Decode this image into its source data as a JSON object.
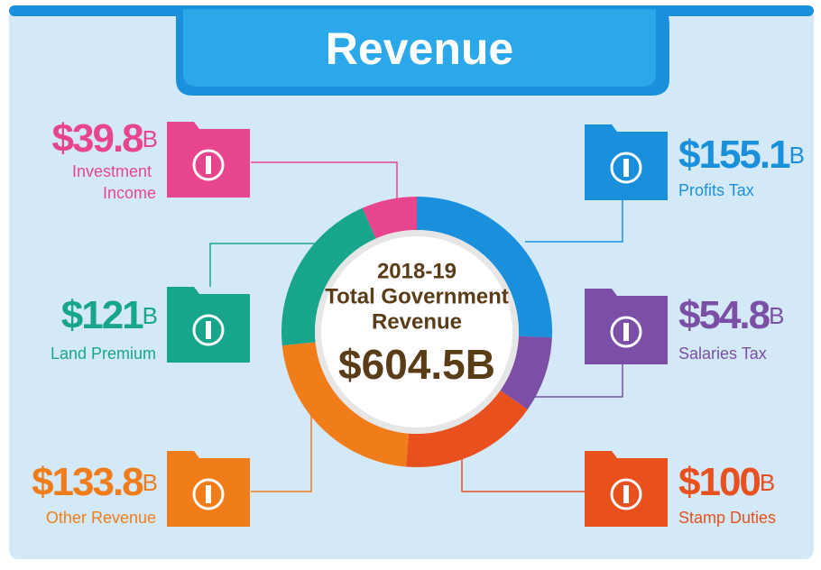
{
  "chart_data": {
    "type": "pie",
    "title": "Revenue",
    "center_lines": [
      "2018-19",
      "Total Government",
      "Revenue"
    ],
    "total_label": "$604.5B",
    "categories": [
      "Profits Tax",
      "Salaries Tax",
      "Stamp Duties",
      "Other Revenue",
      "Land Premium",
      "Investment Income"
    ],
    "values": [
      155.1,
      54.8,
      100,
      133.8,
      121,
      39.8
    ],
    "value_labels": [
      "$155.1B",
      "$54.8B",
      "$100B",
      "$133.8B",
      "$121B",
      "$39.8B"
    ],
    "colors": [
      "#1a8fdc",
      "#7b4fa6",
      "#e8501e",
      "#f07d1a",
      "#17a58c",
      "#e7468f"
    ]
  }
}
